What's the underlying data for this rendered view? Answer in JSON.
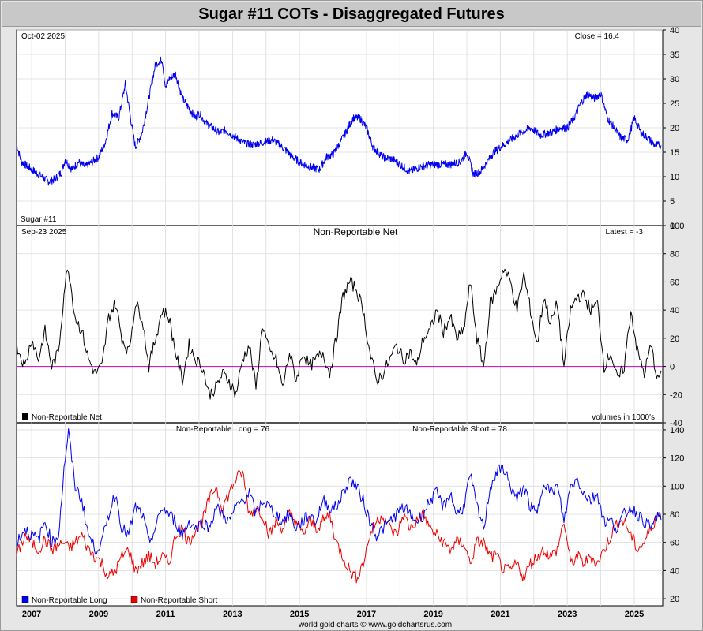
{
  "page": {
    "title": "Sugar #11 COTs - Disaggregated Futures",
    "footer": "world gold charts © www.goldchartsrus.com"
  },
  "colors": {
    "price": "#0000ee",
    "net": "#000000",
    "zero_line": "#cc00cc",
    "long": "#0000ee",
    "short": "#ee0000",
    "grid": "#dcdcdc"
  },
  "x_axis": {
    "start_year": 2006.55,
    "end_year": 2025.85,
    "tick_labels": [
      "2007",
      "2009",
      "2011",
      "2013",
      "2015",
      "2017",
      "2019",
      "2021",
      "2023",
      "2025"
    ]
  },
  "chart_data": [
    {
      "type": "line",
      "title": "Sugar #11",
      "date_label": "Oct-02  2025",
      "latest_label": "Close = 16.4",
      "ylim": [
        0,
        40
      ],
      "yticks": [
        0,
        5,
        10,
        15,
        20,
        25,
        30,
        35,
        40
      ],
      "series": [
        {
          "name": "Sugar #11",
          "x": [
            2006.55,
            2006.7,
            2006.9,
            2007.1,
            2007.3,
            2007.5,
            2007.7,
            2007.9,
            2008.0,
            2008.2,
            2008.4,
            2008.6,
            2008.8,
            2009.0,
            2009.2,
            2009.4,
            2009.6,
            2009.8,
            2010.0,
            2010.1,
            2010.3,
            2010.5,
            2010.7,
            2010.9,
            2011.0,
            2011.1,
            2011.3,
            2011.5,
            2011.7,
            2011.9,
            2012.0,
            2012.2,
            2012.4,
            2012.6,
            2012.8,
            2013.0,
            2013.3,
            2013.6,
            2013.9,
            2014.2,
            2014.5,
            2014.8,
            2015.0,
            2015.3,
            2015.6,
            2015.8,
            2016.0,
            2016.3,
            2016.6,
            2016.8,
            2017.0,
            2017.2,
            2017.5,
            2017.8,
            2018.0,
            2018.3,
            2018.6,
            2018.9,
            2019.2,
            2019.5,
            2019.8,
            2020.0,
            2020.2,
            2020.4,
            2020.6,
            2020.8,
            2021.0,
            2021.3,
            2021.6,
            2021.9,
            2022.2,
            2022.5,
            2022.8,
            2023.0,
            2023.2,
            2023.4,
            2023.6,
            2023.8,
            2024.0,
            2024.2,
            2024.4,
            2024.6,
            2024.8,
            2025.0,
            2025.2,
            2025.4,
            2025.6,
            2025.8
          ],
          "values": [
            16.5,
            13,
            12,
            11,
            10,
            9,
            9.5,
            11,
            13.5,
            11.5,
            13,
            12,
            13,
            14,
            17,
            23,
            22,
            29,
            20,
            16,
            19,
            26,
            33,
            34,
            28,
            30,
            31,
            26,
            24,
            22,
            23,
            21,
            20,
            19,
            19.5,
            18.5,
            17,
            16.5,
            17,
            17.5,
            16,
            14,
            13,
            12,
            11.5,
            14,
            14.5,
            18,
            22,
            22,
            20,
            16,
            14,
            13.5,
            12.5,
            11,
            12,
            12.5,
            12.5,
            12.5,
            13,
            15,
            10.5,
            11,
            13,
            15,
            16,
            17.5,
            19,
            20,
            18.5,
            19,
            20,
            20,
            22,
            25,
            27,
            26,
            27,
            22,
            20,
            18,
            17.5,
            22,
            19,
            18,
            16.5,
            16.4
          ]
        }
      ]
    },
    {
      "type": "line",
      "title": "Non-Reportable Net",
      "date_label": "Sep-23  2025",
      "latest_label": "Latest = -3",
      "legend": "Non-Reportable Net",
      "units_note": "volumes in 1000's",
      "ylim": [
        -40,
        100
      ],
      "yticks": [
        -40,
        -20,
        0,
        20,
        40,
        60,
        80,
        100
      ],
      "series": [
        {
          "name": "Non-Reportable Net",
          "x": [
            2006.55,
            2006.8,
            2007.0,
            2007.2,
            2007.4,
            2007.6,
            2007.8,
            2008.0,
            2008.1,
            2008.3,
            2008.5,
            2008.7,
            2008.9,
            2009.1,
            2009.3,
            2009.5,
            2009.7,
            2009.9,
            2010.1,
            2010.3,
            2010.5,
            2010.7,
            2010.9,
            2011.1,
            2011.3,
            2011.5,
            2011.7,
            2011.9,
            2012.1,
            2012.3,
            2012.5,
            2012.7,
            2012.9,
            2013.1,
            2013.3,
            2013.5,
            2013.7,
            2013.9,
            2014.1,
            2014.3,
            2014.5,
            2014.7,
            2014.9,
            2015.1,
            2015.3,
            2015.5,
            2015.7,
            2015.9,
            2016.1,
            2016.3,
            2016.5,
            2016.7,
            2016.9,
            2017.1,
            2017.3,
            2017.5,
            2017.7,
            2017.9,
            2018.1,
            2018.3,
            2018.5,
            2018.7,
            2018.9,
            2019.1,
            2019.3,
            2019.5,
            2019.7,
            2019.9,
            2020.1,
            2020.3,
            2020.5,
            2020.7,
            2020.9,
            2021.1,
            2021.3,
            2021.5,
            2021.7,
            2021.9,
            2022.1,
            2022.3,
            2022.5,
            2022.7,
            2022.9,
            2023.1,
            2023.3,
            2023.5,
            2023.7,
            2023.9,
            2024.1,
            2024.3,
            2024.5,
            2024.7,
            2024.9,
            2025.1,
            2025.3,
            2025.5,
            2025.7,
            2025.8
          ],
          "values": [
            15,
            0,
            20,
            5,
            25,
            0,
            10,
            60,
            70,
            35,
            25,
            5,
            -5,
            0,
            35,
            45,
            20,
            10,
            45,
            35,
            0,
            20,
            40,
            35,
            10,
            -10,
            15,
            5,
            0,
            -20,
            -15,
            -5,
            -10,
            -20,
            5,
            15,
            -15,
            30,
            10,
            5,
            -15,
            10,
            -10,
            10,
            0,
            5,
            10,
            -5,
            20,
            50,
            60,
            55,
            40,
            10,
            -10,
            -5,
            5,
            15,
            5,
            10,
            0,
            20,
            25,
            40,
            25,
            35,
            20,
            25,
            60,
            20,
            0,
            45,
            55,
            70,
            60,
            40,
            65,
            40,
            15,
            50,
            30,
            45,
            0,
            40,
            50,
            50,
            40,
            45,
            0,
            10,
            -10,
            0,
            40,
            10,
            -5,
            15,
            -10,
            -3
          ]
        }
      ],
      "reference_line": 0
    },
    {
      "type": "line",
      "title": "",
      "long_label": "Non-Reportable Long = 76",
      "short_label": "Non-Reportable Short = 78",
      "legend": [
        "Non-Reportable Long",
        "Non-Reportable Short"
      ],
      "ylim": [
        15,
        145
      ],
      "yticks": [
        20,
        40,
        60,
        80,
        100,
        120,
        140
      ],
      "series": [
        {
          "name": "Non-Reportable Long",
          "x": [
            2006.55,
            2006.8,
            2007.0,
            2007.2,
            2007.4,
            2007.6,
            2007.8,
            2008.0,
            2008.1,
            2008.3,
            2008.5,
            2008.7,
            2008.9,
            2009.1,
            2009.3,
            2009.5,
            2009.7,
            2009.9,
            2010.1,
            2010.3,
            2010.5,
            2010.7,
            2010.9,
            2011.1,
            2011.3,
            2011.5,
            2011.7,
            2011.9,
            2012.1,
            2012.3,
            2012.5,
            2012.7,
            2012.9,
            2013.1,
            2013.3,
            2013.5,
            2013.7,
            2013.9,
            2014.1,
            2014.3,
            2014.5,
            2014.7,
            2014.9,
            2015.1,
            2015.3,
            2015.5,
            2015.7,
            2015.9,
            2016.1,
            2016.3,
            2016.5,
            2016.7,
            2016.9,
            2017.1,
            2017.3,
            2017.5,
            2017.7,
            2017.9,
            2018.1,
            2018.3,
            2018.5,
            2018.7,
            2018.9,
            2019.1,
            2019.3,
            2019.5,
            2019.7,
            2019.9,
            2020.1,
            2020.3,
            2020.5,
            2020.7,
            2020.9,
            2021.1,
            2021.3,
            2021.5,
            2021.7,
            2021.9,
            2022.1,
            2022.3,
            2022.5,
            2022.7,
            2022.9,
            2023.1,
            2023.3,
            2023.5,
            2023.7,
            2023.9,
            2024.1,
            2024.3,
            2024.5,
            2024.7,
            2024.9,
            2025.1,
            2025.3,
            2025.5,
            2025.7,
            2025.8
          ],
          "values": [
            60,
            70,
            65,
            62,
            75,
            60,
            65,
            120,
            138,
            100,
            90,
            65,
            55,
            60,
            80,
            95,
            70,
            65,
            85,
            80,
            60,
            70,
            85,
            80,
            75,
            65,
            75,
            70,
            75,
            70,
            85,
            80,
            75,
            85,
            90,
            95,
            80,
            90,
            85,
            80,
            75,
            80,
            70,
            75,
            80,
            75,
            90,
            85,
            85,
            95,
            105,
            100,
            90,
            75,
            65,
            70,
            75,
            80,
            85,
            80,
            75,
            80,
            90,
            95,
            85,
            95,
            80,
            85,
            108,
            85,
            70,
            100,
            110,
            113,
            100,
            90,
            100,
            85,
            80,
            105,
            95,
            100,
            75,
            100,
            105,
            95,
            90,
            95,
            75,
            75,
            70,
            80,
            85,
            80,
            75,
            70,
            80,
            76
          ]
        },
        {
          "name": "Non-Reportable Short",
          "x": [
            2006.55,
            2006.8,
            2007.0,
            2007.2,
            2007.4,
            2007.6,
            2007.8,
            2008.0,
            2008.1,
            2008.3,
            2008.5,
            2008.7,
            2008.9,
            2009.1,
            2009.3,
            2009.5,
            2009.7,
            2009.9,
            2010.1,
            2010.3,
            2010.5,
            2010.7,
            2010.9,
            2011.1,
            2011.3,
            2011.5,
            2011.7,
            2011.9,
            2012.1,
            2012.3,
            2012.5,
            2012.7,
            2012.9,
            2013.1,
            2013.3,
            2013.5,
            2013.7,
            2013.9,
            2014.1,
            2014.3,
            2014.5,
            2014.7,
            2014.9,
            2015.1,
            2015.3,
            2015.5,
            2015.7,
            2015.9,
            2016.1,
            2016.3,
            2016.5,
            2016.7,
            2016.9,
            2017.1,
            2017.3,
            2017.5,
            2017.7,
            2017.9,
            2018.1,
            2018.3,
            2018.5,
            2018.7,
            2018.9,
            2019.1,
            2019.3,
            2019.5,
            2019.7,
            2019.9,
            2020.1,
            2020.3,
            2020.5,
            2020.7,
            2020.9,
            2021.1,
            2021.3,
            2021.5,
            2021.7,
            2021.9,
            2022.1,
            2022.3,
            2022.5,
            2022.7,
            2022.9,
            2023.1,
            2023.3,
            2023.5,
            2023.7,
            2023.9,
            2024.1,
            2024.3,
            2024.5,
            2024.7,
            2024.9,
            2025.1,
            2025.3,
            2025.5,
            2025.7,
            2025.8
          ],
          "values": [
            50,
            65,
            60,
            55,
            62,
            55,
            58,
            60,
            55,
            60,
            65,
            55,
            50,
            45,
            35,
            40,
            50,
            55,
            40,
            45,
            50,
            45,
            50,
            45,
            65,
            70,
            60,
            70,
            75,
            90,
            100,
            85,
            95,
            105,
            110,
            80,
            85,
            80,
            65,
            75,
            70,
            80,
            75,
            65,
            75,
            70,
            75,
            80,
            60,
            50,
            40,
            35,
            45,
            65,
            75,
            80,
            70,
            65,
            80,
            70,
            75,
            80,
            70,
            65,
            60,
            55,
            60,
            60,
            45,
            60,
            60,
            50,
            50,
            40,
            40,
            45,
            35,
            45,
            50,
            55,
            50,
            55,
            75,
            45,
            50,
            45,
            50,
            45,
            55,
            65,
            75,
            75,
            65,
            55,
            60,
            70,
            80,
            78
          ]
        }
      ]
    }
  ]
}
